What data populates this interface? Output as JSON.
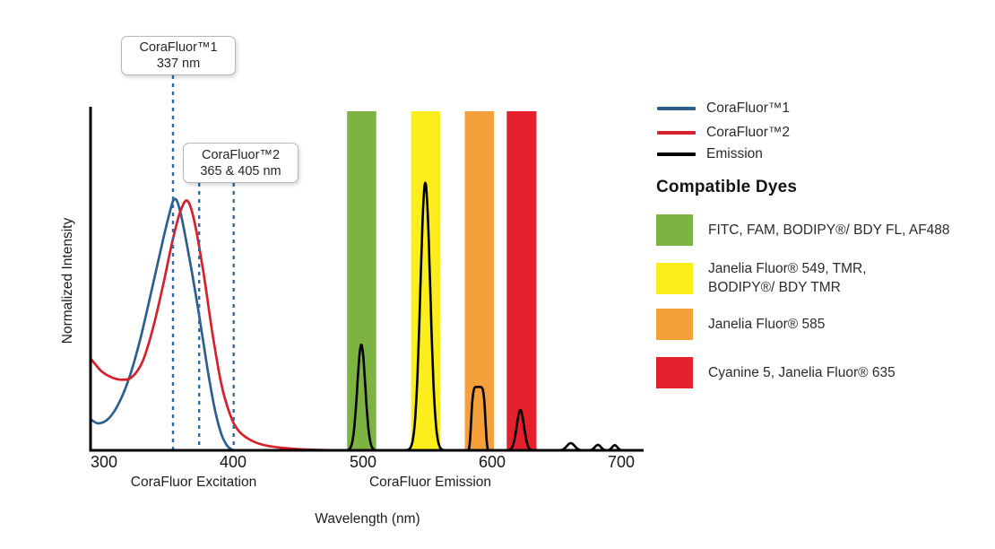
{
  "callouts": [
    {
      "lines": [
        "CoraFluor™1",
        "337 nm"
      ]
    },
    {
      "lines": [
        "CoraFluor™2",
        "365 & 405 nm"
      ]
    }
  ],
  "legend": {
    "series": [
      {
        "label": "CoraFluor™1",
        "color": "#2d5f8e"
      },
      {
        "label": "CoraFluor™2",
        "color": "#d7202e"
      },
      {
        "label": "Emission",
        "color": "#000000"
      }
    ],
    "heading": "Compatible Dyes",
    "dyes": [
      {
        "color": "#7cb342",
        "lines": [
          "FITC, FAM, BODIPY®/ BDY FL, AF488",
          ""
        ]
      },
      {
        "color": "#fcee1d",
        "lines": [
          "Janelia Fluor® 549, TMR,",
          "BODIPY®/ BDY TMR"
        ]
      },
      {
        "color": "#f6a03b",
        "lines": [
          "Janelia Fluor® 585",
          ""
        ]
      },
      {
        "color": "#e5202c",
        "lines": [
          "Cyanine 5, Janelia Fluor® 635",
          ""
        ]
      }
    ]
  },
  "chart_data": {
    "type": "line",
    "xlabel": "Wavelength (nm)",
    "ylabel": "Normalized Intensity",
    "x_ticks": [
      300,
      400,
      500,
      600,
      700
    ],
    "x_axis_range_nm": [
      290,
      717
    ],
    "y_axis_range": [
      0,
      1
    ],
    "grid": false,
    "region_labels": [
      "CoraFluor Excitation",
      "CoraFluor Emission"
    ],
    "excitation_marker_lines": {
      "color": "#2e6ba6",
      "labels": [
        "337 nm",
        "365 nm",
        "405 nm"
      ],
      "x_nm_as_drawn": [
        353.4,
        373.6,
        400.3
      ]
    },
    "filter_bands": [
      {
        "dye_group": "FITC, FAM, BODIPY®/ BDY FL, AF488",
        "nm": [
          488.0,
          510.5
        ],
        "color": "#7cb342"
      },
      {
        "dye_group": "Janelia Fluor® 549, TMR, BODIPY®/ BDY TMR",
        "nm": [
          537.5,
          560.0
        ],
        "color": "#fcee1d"
      },
      {
        "dye_group": "Janelia Fluor® 585",
        "nm": [
          579.0,
          601.5
        ],
        "color": "#f6a03b"
      },
      {
        "dye_group": "Cyanine 5, Janelia Fluor® 635",
        "nm": [
          611.5,
          634.5
        ],
        "color": "#e5202c"
      }
    ],
    "series": [
      {
        "name": "CoraFluor™1",
        "kind": "excitation",
        "color": "#2d5f8e",
        "peak_label_nm": "337",
        "points_nm_intensity": [
          [
            290,
            0.09
          ],
          [
            296,
            0.079
          ],
          [
            304,
            0.095
          ],
          [
            312,
            0.142
          ],
          [
            320,
            0.218
          ],
          [
            328,
            0.325
          ],
          [
            336,
            0.455
          ],
          [
            344,
            0.59
          ],
          [
            350,
            0.685
          ],
          [
            354.5,
            0.737
          ],
          [
            359,
            0.7
          ],
          [
            366,
            0.565
          ],
          [
            373,
            0.41
          ],
          [
            380,
            0.24
          ],
          [
            386,
            0.115
          ],
          [
            391,
            0.045
          ],
          [
            395,
            0.015
          ],
          [
            398,
            0.004
          ],
          [
            400,
            0.0
          ]
        ]
      },
      {
        "name": "CoraFluor™2",
        "kind": "excitation",
        "color": "#d7202e",
        "peak_label_nm": "365 & 405",
        "points_nm_intensity": [
          [
            290,
            0.268
          ],
          [
            298,
            0.232
          ],
          [
            306,
            0.214
          ],
          [
            314,
            0.207
          ],
          [
            322,
            0.216
          ],
          [
            330,
            0.262
          ],
          [
            338,
            0.36
          ],
          [
            346,
            0.49
          ],
          [
            353,
            0.615
          ],
          [
            359,
            0.7
          ],
          [
            364.5,
            0.732
          ],
          [
            370,
            0.67
          ],
          [
            377,
            0.52
          ],
          [
            384,
            0.34
          ],
          [
            391,
            0.19
          ],
          [
            398,
            0.1
          ],
          [
            404,
            0.058
          ],
          [
            412,
            0.033
          ],
          [
            422,
            0.017
          ],
          [
            434,
            0.009
          ],
          [
            448,
            0.004
          ],
          [
            462,
            0.0015
          ],
          [
            478,
            0.0
          ]
        ]
      },
      {
        "name": "Emission",
        "kind": "emission",
        "color": "#000000",
        "peaks": [
          {
            "center_nm": 499.0,
            "amplitude": 0.31,
            "sigma_nm": 3.1
          },
          {
            "center_nm": 548.5,
            "amplitude": 0.785,
            "sigma_nm": 3.8
          },
          {
            "center_nm": 589.5,
            "amplitude": 0.186,
            "width_nm": 5.8,
            "power": 6
          },
          {
            "center_nm": 622.0,
            "amplitude": 0.118,
            "sigma_nm": 2.8
          },
          {
            "center_nm": 661.0,
            "amplitude": 0.021,
            "sigma_nm": 3.0
          },
          {
            "center_nm": 682.0,
            "amplitude": 0.016,
            "sigma_nm": 2.3
          },
          {
            "center_nm": 695.0,
            "amplitude": 0.015,
            "sigma_nm": 2.0
          }
        ]
      }
    ]
  }
}
